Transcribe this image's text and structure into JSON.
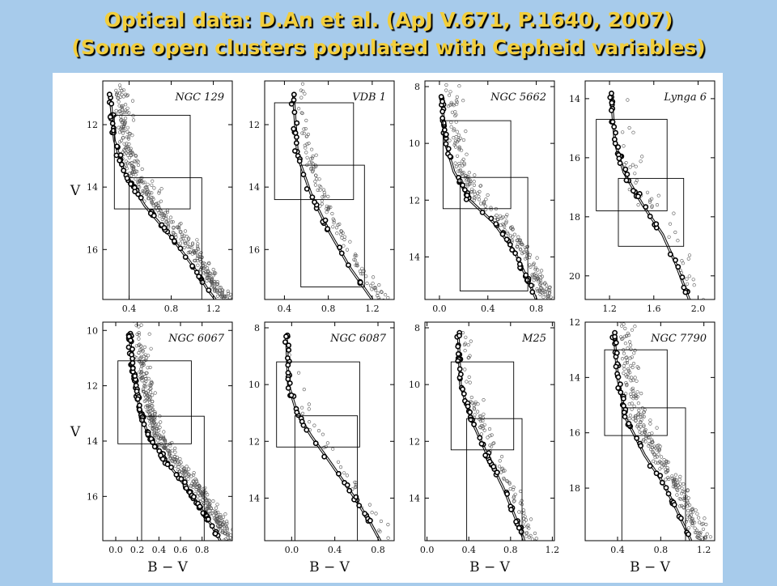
{
  "slide": {
    "title_line1": "Optical data: D.An et al. (ApJ V.671, P.1640, 2007)",
    "title_line2": "(Some open clusters populated with Cepheid variables)"
  },
  "colors": {
    "background": "#a7cbeb",
    "title": "#f2ce3c",
    "points": "#555555",
    "members": "#000000"
  },
  "chart_data": [
    {
      "type": "scatter",
      "title": "NGC 129",
      "xlabel": "",
      "ylabel": "V",
      "xlim": [
        0.15,
        1.38
      ],
      "ylim": [
        17.6,
        10.6
      ],
      "xticks": [
        0.4,
        0.8,
        1.2
      ],
      "yticks": [
        12,
        14,
        16
      ],
      "isochrone": [
        [
          0.22,
          11.1
        ],
        [
          0.26,
          12.5
        ],
        [
          0.35,
          13.5
        ],
        [
          0.55,
          14.6
        ],
        [
          0.8,
          15.6
        ],
        [
          1.0,
          16.5
        ],
        [
          1.15,
          17.3
        ],
        [
          1.22,
          17.6
        ]
      ],
      "boxes": [
        [
          0.26,
          0.98,
          11.7,
          14.7
        ],
        [
          0.4,
          1.09,
          13.7,
          17.6
        ]
      ],
      "members": {
        "seed": 11,
        "count": 60,
        "x_offset": 0.0,
        "scatter": [
          0.025,
          0.25
        ]
      },
      "field": {
        "seed": 12,
        "count": 380,
        "x_offset": 0.06,
        "scatter": [
          0.1,
          0.75
        ]
      }
    },
    {
      "type": "scatter",
      "title": "VDB 1",
      "xlabel": "",
      "ylabel": "",
      "xlim": [
        0.22,
        1.4
      ],
      "ylim": [
        17.6,
        10.6
      ],
      "xticks": [
        0.4,
        0.8,
        1.2
      ],
      "yticks": [
        12,
        14,
        16
      ],
      "isochrone": [
        [
          0.48,
          11.0
        ],
        [
          0.52,
          13.0
        ],
        [
          0.65,
          14.3
        ],
        [
          0.82,
          15.5
        ],
        [
          1.0,
          16.6
        ],
        [
          1.2,
          17.6
        ]
      ],
      "boxes": [
        [
          0.31,
          1.03,
          11.3,
          14.4
        ],
        [
          0.55,
          1.13,
          13.3,
          17.2
        ]
      ],
      "members": {
        "seed": 21,
        "count": 32,
        "x_offset": 0.0,
        "scatter": [
          0.03,
          0.2
        ]
      },
      "field": {
        "seed": 22,
        "count": 120,
        "x_offset": 0.07,
        "scatter": [
          0.07,
          0.5
        ]
      }
    },
    {
      "type": "scatter",
      "title": "NGC 5662",
      "xlabel": "",
      "ylabel": "",
      "xlim": [
        -0.12,
        0.95
      ],
      "ylim": [
        15.5,
        7.8
      ],
      "xticks": [
        0.0,
        0.4,
        0.8
      ],
      "yticks": [
        8,
        10,
        12,
        14
      ],
      "isochrone": [
        [
          0.02,
          8.5
        ],
        [
          0.05,
          10.0
        ],
        [
          0.12,
          11.0
        ],
        [
          0.25,
          12.0
        ],
        [
          0.45,
          12.8
        ],
        [
          0.62,
          13.8
        ],
        [
          0.75,
          15.0
        ],
        [
          0.8,
          15.5
        ]
      ],
      "boxes": [
        [
          0.03,
          0.59,
          9.2,
          12.3
        ],
        [
          0.17,
          0.73,
          11.2,
          15.2
        ]
      ],
      "members": {
        "seed": 31,
        "count": 60,
        "x_offset": 0.0,
        "scatter": [
          0.025,
          0.22
        ]
      },
      "field": {
        "seed": 32,
        "count": 230,
        "x_offset": 0.05,
        "scatter": [
          0.08,
          0.6
        ]
      }
    },
    {
      "type": "scatter",
      "title": "Lynga 6",
      "xlabel": "",
      "ylabel": "",
      "xlim": [
        0.98,
        2.15
      ],
      "ylim": [
        20.8,
        13.4
      ],
      "xticks": [
        1.2,
        1.6,
        2.0
      ],
      "yticks": [
        14,
        16,
        18,
        20
      ],
      "isochrone": [
        [
          1.22,
          14.1
        ],
        [
          1.25,
          15.5
        ],
        [
          1.33,
          16.5
        ],
        [
          1.5,
          17.6
        ],
        [
          1.68,
          18.6
        ],
        [
          1.8,
          19.6
        ],
        [
          1.92,
          20.8
        ]
      ],
      "boxes": [
        [
          1.08,
          1.72,
          14.7,
          17.8
        ],
        [
          1.28,
          1.87,
          16.7,
          19.0
        ]
      ],
      "members": {
        "seed": 41,
        "count": 45,
        "x_offset": 0.0,
        "scatter": [
          0.03,
          0.3
        ]
      },
      "field": {
        "seed": 42,
        "count": 45,
        "x_offset": 0.02,
        "scatter": [
          0.15,
          1.0
        ]
      }
    },
    {
      "type": "scatter",
      "title": "NGC 6067",
      "xlabel": "B − V",
      "ylabel": "V",
      "xlim": [
        -0.12,
        1.08
      ],
      "ylim": [
        17.6,
        9.7
      ],
      "xticks": [
        0.0,
        0.2,
        0.4,
        0.6,
        0.8
      ],
      "yticks": [
        10,
        12,
        14,
        16
      ],
      "isochrone": [
        [
          0.13,
          10.2
        ],
        [
          0.16,
          11.5
        ],
        [
          0.22,
          12.8
        ],
        [
          0.3,
          13.8
        ],
        [
          0.48,
          14.8
        ],
        [
          0.68,
          15.8
        ],
        [
          0.85,
          16.8
        ],
        [
          0.97,
          17.6
        ]
      ],
      "boxes": [
        [
          0.02,
          0.7,
          11.1,
          14.1
        ],
        [
          0.24,
          0.82,
          13.1,
          17.6
        ]
      ],
      "members": {
        "seed": 51,
        "count": 120,
        "x_offset": 0.0,
        "scatter": [
          0.022,
          0.2
        ]
      },
      "field": {
        "seed": 52,
        "count": 420,
        "x_offset": 0.06,
        "scatter": [
          0.08,
          0.7
        ]
      }
    },
    {
      "type": "scatter",
      "title": "NGC 6087",
      "xlabel": "B − V",
      "ylabel": "",
      "xlim": [
        -0.25,
        0.95
      ],
      "ylim": [
        15.5,
        7.8
      ],
      "xticks": [
        0.0,
        0.4,
        0.8
      ],
      "yticks": [
        8,
        10,
        12,
        14
      ],
      "isochrone": [
        [
          -0.05,
          8.2
        ],
        [
          -0.03,
          10.0
        ],
        [
          0.05,
          11.0
        ],
        [
          0.18,
          11.8
        ],
        [
          0.35,
          12.7
        ],
        [
          0.55,
          13.8
        ],
        [
          0.72,
          14.8
        ],
        [
          0.82,
          15.5
        ]
      ],
      "boxes": [
        [
          -0.14,
          0.63,
          9.2,
          12.2
        ],
        [
          0.03,
          0.61,
          11.1,
          15.5
        ]
      ],
      "members": {
        "seed": 61,
        "count": 40,
        "x_offset": 0.0,
        "scatter": [
          0.025,
          0.25
        ]
      },
      "field": {
        "seed": 62,
        "count": 35,
        "x_offset": 0.05,
        "scatter": [
          0.1,
          0.6
        ]
      }
    },
    {
      "type": "scatter",
      "title": "M25",
      "xlabel": "B − V",
      "ylabel": "",
      "xlim": [
        -0.02,
        1.22
      ],
      "ylim": [
        15.5,
        7.8
      ],
      "xticks": [
        0.0,
        0.4,
        0.8,
        1.2
      ],
      "yticks": [
        8,
        10,
        12,
        14
      ],
      "isochrone": [
        [
          0.3,
          8.3
        ],
        [
          0.32,
          10.0
        ],
        [
          0.42,
          11.2
        ],
        [
          0.58,
          12.5
        ],
        [
          0.75,
          13.8
        ],
        [
          0.88,
          15.0
        ],
        [
          0.93,
          15.5
        ]
      ],
      "boxes": [
        [
          0.23,
          0.83,
          9.2,
          12.3
        ],
        [
          0.38,
          0.91,
          11.2,
          15.5
        ]
      ],
      "members": {
        "seed": 71,
        "count": 60,
        "x_offset": 0.0,
        "scatter": [
          0.025,
          0.25
        ]
      },
      "field": {
        "seed": 72,
        "count": 100,
        "x_offset": 0.05,
        "scatter": [
          0.08,
          0.6
        ]
      }
    },
    {
      "type": "scatter",
      "title": "NGC 7790",
      "xlabel": "B − V",
      "ylabel": "",
      "xlim": [
        0.1,
        1.3
      ],
      "ylim": [
        19.9,
        12.0
      ],
      "xticks": [
        0.4,
        0.8,
        1.2
      ],
      "yticks": [
        12,
        14,
        16,
        18
      ],
      "isochrone": [
        [
          0.37,
          12.5
        ],
        [
          0.4,
          14.0
        ],
        [
          0.48,
          15.5
        ],
        [
          0.65,
          16.8
        ],
        [
          0.82,
          17.8
        ],
        [
          0.95,
          18.8
        ],
        [
          1.08,
          19.9
        ]
      ],
      "boxes": [
        [
          0.28,
          0.86,
          13.0,
          16.1
        ],
        [
          0.44,
          1.03,
          15.1,
          19.9
        ]
      ],
      "members": {
        "seed": 81,
        "count": 50,
        "x_offset": 0.0,
        "scatter": [
          0.025,
          0.25
        ]
      },
      "field": {
        "seed": 82,
        "count": 280,
        "x_offset": 0.07,
        "scatter": [
          0.1,
          0.75
        ]
      }
    }
  ]
}
